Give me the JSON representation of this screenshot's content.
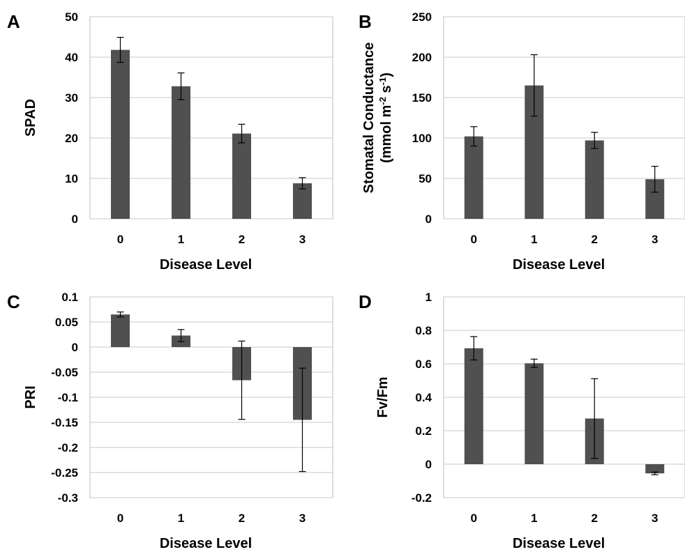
{
  "chart_data": [
    {
      "panel": "A",
      "type": "bar",
      "categories": [
        "0",
        "1",
        "2",
        "3"
      ],
      "values": [
        41.8,
        32.8,
        21.1,
        8.8
      ],
      "error": [
        3.1,
        3.3,
        2.3,
        1.4
      ],
      "xlabel": "Disease Level",
      "ylabel": "SPAD",
      "ylim": [
        0,
        50
      ],
      "yticks": [
        0,
        10,
        20,
        30,
        40,
        50
      ],
      "ytick_labels": [
        "0",
        "10",
        "20",
        "30",
        "40",
        "50"
      ],
      "grid": true
    },
    {
      "panel": "B",
      "type": "bar",
      "categories": [
        "0",
        "1",
        "2",
        "3"
      ],
      "values": [
        102,
        165,
        97,
        49
      ],
      "error": [
        12,
        38,
        10,
        16
      ],
      "xlabel": "Disease Level",
      "ylabel": "Stomatal Conductance",
      "ylabel2": "(mmol m-2 s-1)",
      "ylim": [
        0,
        250
      ],
      "yticks": [
        0,
        50,
        100,
        150,
        200,
        250
      ],
      "ytick_labels": [
        "0",
        "50",
        "100",
        "150",
        "200",
        "250"
      ],
      "grid": true
    },
    {
      "panel": "C",
      "type": "bar",
      "categories": [
        "0",
        "1",
        "2",
        "3"
      ],
      "values": [
        0.065,
        0.023,
        -0.066,
        -0.145
      ],
      "error": [
        0.005,
        0.012,
        0.078,
        0.103
      ],
      "xlabel": "Disease Level",
      "ylabel": "PRI",
      "ylim": [
        -0.3,
        0.1
      ],
      "yticks": [
        -0.3,
        -0.25,
        -0.2,
        -0.15,
        -0.1,
        -0.05,
        0,
        0.05,
        0.1
      ],
      "ytick_labels": [
        "-0.3",
        "-0.25",
        "-0.2",
        "-0.15",
        "-0.1",
        "-0.05",
        "0",
        "0.05",
        "0.1"
      ],
      "grid": true
    },
    {
      "panel": "D",
      "type": "bar",
      "categories": [
        "0",
        "1",
        "2",
        "3"
      ],
      "values": [
        0.693,
        0.603,
        0.273,
        -0.055
      ],
      "error": [
        0.07,
        0.025,
        0.238,
        0.008
      ],
      "xlabel": "Disease Level",
      "ylabel": "Fv/Fm",
      "ylim": [
        -0.2,
        1
      ],
      "yticks": [
        -0.2,
        0,
        0.2,
        0.4,
        0.6,
        0.8,
        1
      ],
      "ytick_labels": [
        "-0.2",
        "0",
        "0.2",
        "0.4",
        "0.6",
        "0.8",
        "1"
      ],
      "grid": true
    }
  ]
}
